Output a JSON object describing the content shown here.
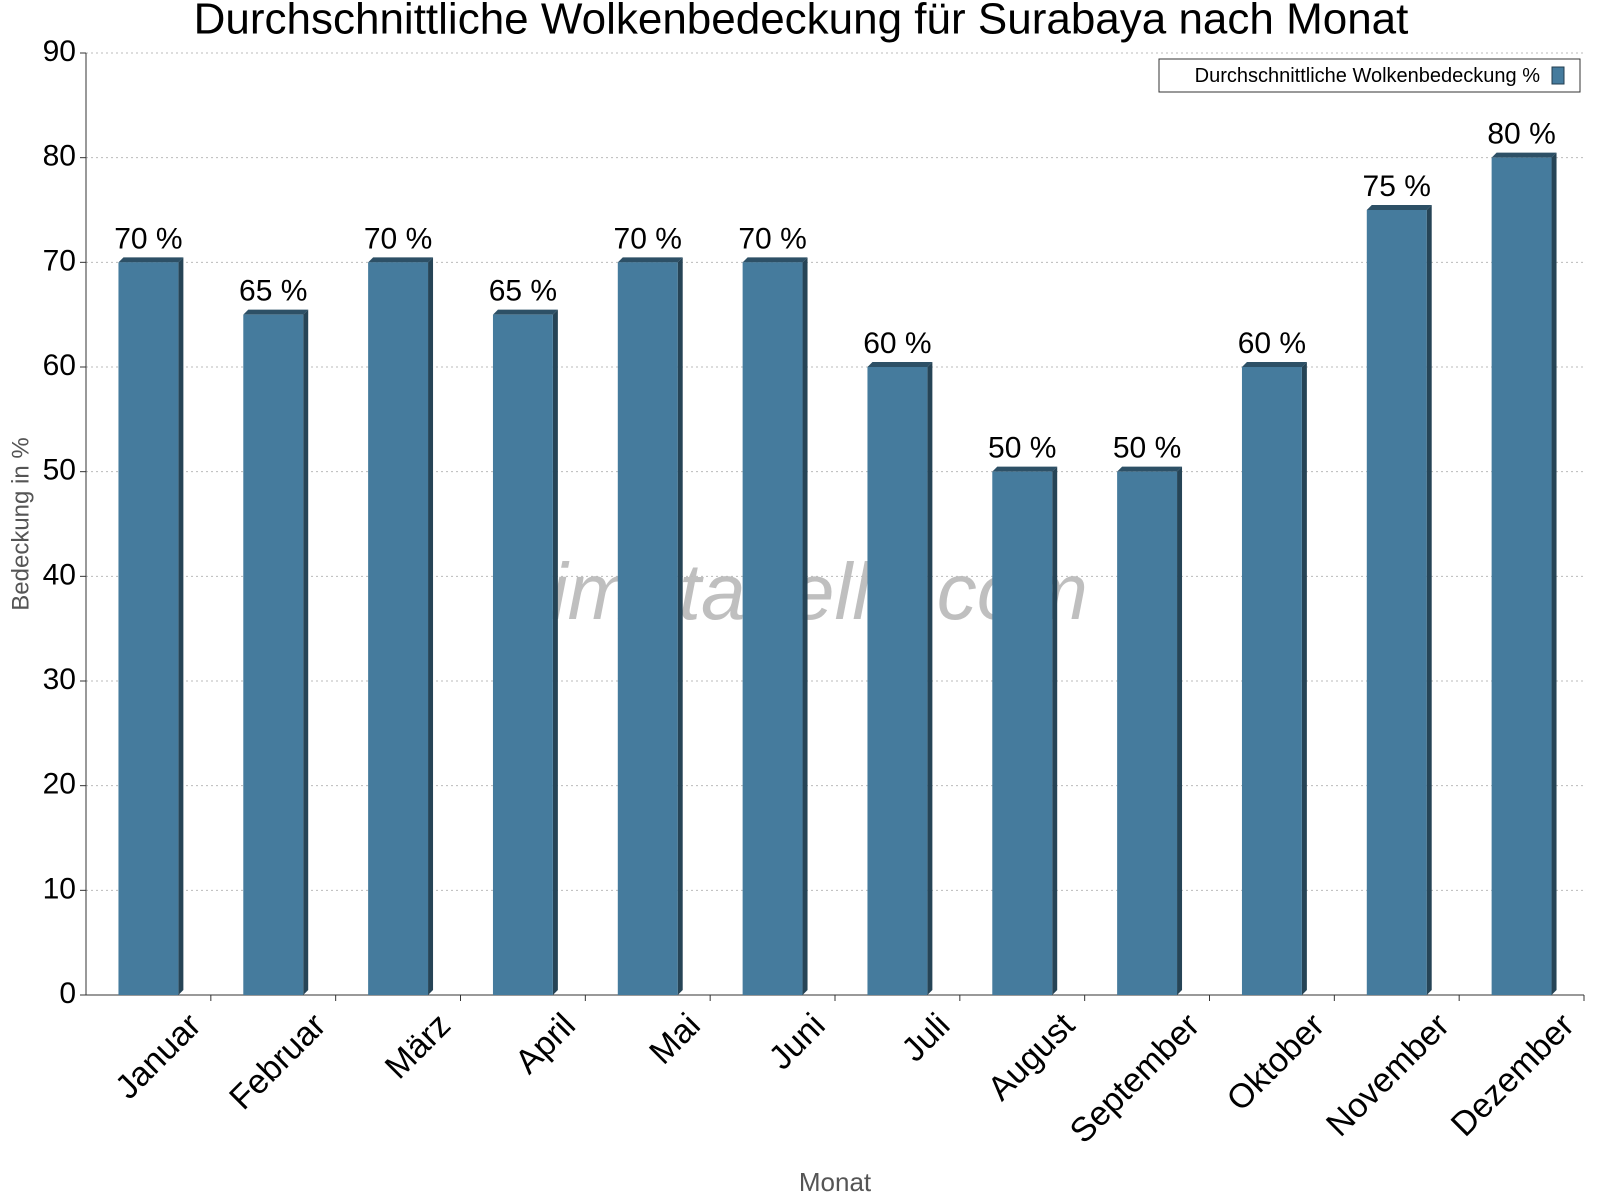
{
  "chart_data": {
    "type": "bar",
    "title": "Durchschnittliche Wolkenbedeckung für Surabaya nach Monat",
    "x_label": "Monat",
    "y_label": "Bedeckung in %",
    "watermark": "klimatabelle.com",
    "categories": [
      "Januar",
      "Februar",
      "März",
      "April",
      "Mai",
      "Juni",
      "Juli",
      "August",
      "September",
      "Oktober",
      "November",
      "Dezember"
    ],
    "series": [
      {
        "name": "Durchschnittliche Wolkenbedeckung %",
        "color": "#457b9d",
        "values": [
          70,
          65,
          70,
          65,
          70,
          70,
          60,
          50,
          50,
          60,
          75,
          80
        ],
        "value_labels": [
          "70 %",
          "65 %",
          "70 %",
          "65 %",
          "70 %",
          "70 %",
          "60 %",
          "50 %",
          "50 %",
          "60 %",
          "75 %",
          "80 %"
        ]
      }
    ],
    "ylim": [
      0,
      90
    ],
    "yticks": [
      0,
      10,
      20,
      30,
      40,
      50,
      60,
      70,
      80,
      90
    ],
    "grid": true,
    "legend": "top-right"
  }
}
